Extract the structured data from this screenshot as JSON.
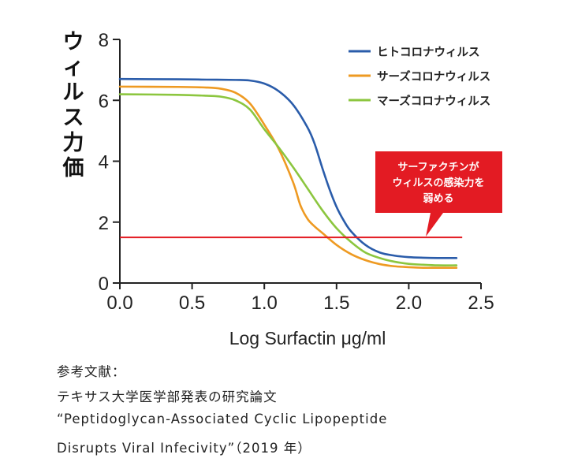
{
  "chart_data": {
    "type": "line",
    "ylabel": "ウィルス力価",
    "xlabel": "Log Surfactin μg/ml",
    "xlim": [
      0,
      2.5
    ],
    "ylim": [
      0,
      8
    ],
    "xticks": [
      "0.0",
      "0.5",
      "1.0",
      "1.5",
      "2.0",
      "2.5"
    ],
    "yticks": [
      "0",
      "2",
      "4",
      "6",
      "8"
    ],
    "legend_position": "top-right",
    "series": [
      {
        "name": "ヒトコロナウィルス",
        "color": "#2a5caa",
        "x": [
          0.0,
          0.4,
          0.6,
          0.8,
          0.9,
          1.0,
          1.1,
          1.2,
          1.3,
          1.35,
          1.4,
          1.45,
          1.5,
          1.55,
          1.6,
          1.7,
          1.8,
          1.9,
          2.0,
          2.1,
          2.2,
          2.33
        ],
        "y": [
          6.7,
          6.69,
          6.68,
          6.67,
          6.65,
          6.55,
          6.3,
          5.85,
          5.1,
          4.55,
          3.8,
          3.1,
          2.5,
          2.05,
          1.7,
          1.25,
          1.0,
          0.9,
          0.85,
          0.83,
          0.82,
          0.82
        ]
      },
      {
        "name": "サーズコロナウィルス",
        "color": "#ee9a22",
        "x": [
          0.0,
          0.4,
          0.6,
          0.7,
          0.8,
          0.9,
          1.0,
          1.1,
          1.2,
          1.25,
          1.3,
          1.35,
          1.4,
          1.5,
          1.6,
          1.7,
          1.8,
          1.9,
          2.0,
          2.1,
          2.2,
          2.33
        ],
        "y": [
          6.45,
          6.44,
          6.42,
          6.38,
          6.25,
          5.9,
          5.2,
          4.4,
          3.3,
          2.55,
          2.1,
          1.85,
          1.65,
          1.25,
          0.95,
          0.75,
          0.62,
          0.55,
          0.52,
          0.5,
          0.5,
          0.5
        ]
      },
      {
        "name": "マーズコロナウィルス",
        "color": "#8cc63f",
        "x": [
          0.0,
          0.4,
          0.6,
          0.7,
          0.8,
          0.9,
          1.0,
          1.1,
          1.2,
          1.3,
          1.4,
          1.5,
          1.6,
          1.7,
          1.8,
          1.9,
          2.0,
          2.1,
          2.2,
          2.33
        ],
        "y": [
          6.2,
          6.18,
          6.15,
          6.12,
          6.0,
          5.7,
          5.05,
          4.45,
          3.8,
          3.1,
          2.4,
          1.8,
          1.35,
          1.0,
          0.82,
          0.7,
          0.63,
          0.6,
          0.58,
          0.58
        ]
      }
    ],
    "threshold": {
      "y": 1.5,
      "x_start": 0.0,
      "x_end": 2.37,
      "color": "#e31b23"
    },
    "annotation": {
      "lines": [
        "サーファクチンが",
        "ウィルスの感染力を",
        "弱める"
      ],
      "color": "#e31b23",
      "text_color": "#ffffff"
    }
  },
  "reference": {
    "heading": "参考文献：",
    "line1": "テキサス大学医学部発表の研究論文",
    "line2": "“Peptidoglycan-Associated Cyclic Lipopeptide",
    "line3": "Disrupts Viral Infecivity”（2019 年）"
  }
}
